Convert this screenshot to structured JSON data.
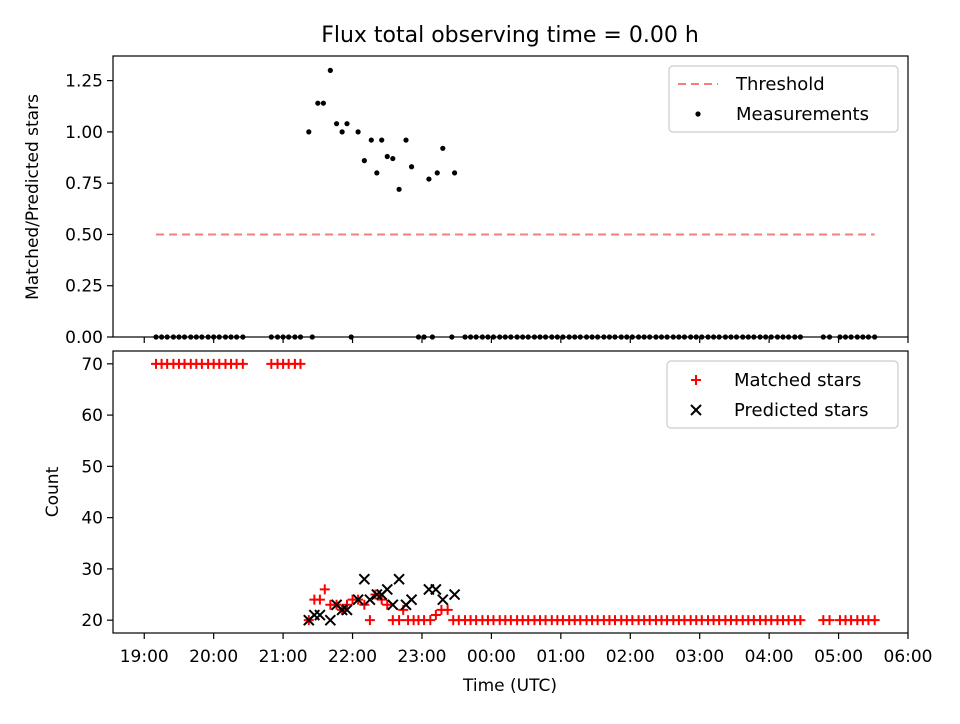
{
  "figure": {
    "title": "Flux total observing time = 0.00 h",
    "xlabel": "Time (UTC)",
    "x_tick_labels": [
      "19:00",
      "20:00",
      "21:00",
      "22:00",
      "23:00",
      "00:00",
      "01:00",
      "02:00",
      "03:00",
      "04:00",
      "05:00",
      "06:00"
    ]
  },
  "colors": {
    "threshold": "#f08080",
    "matched": "#ff0000",
    "predicted": "#000000",
    "measurement": "#000000"
  },
  "chart_data": [
    {
      "type": "scatter",
      "panel": "top",
      "title": "Flux total observing time = 0.00 h",
      "xlabel": "",
      "ylabel": "Matched/Predicted stars",
      "xlim_hours": [
        18.55,
        30.0
      ],
      "ylim": [
        0,
        1.37
      ],
      "y_ticks": [
        0.0,
        0.25,
        0.5,
        0.75,
        1.0,
        1.25
      ],
      "y_tick_labels": [
        "0.00",
        "0.25",
        "0.50",
        "0.75",
        "1.00",
        "1.25"
      ],
      "legend": {
        "position": "top-right",
        "entries": [
          "Threshold",
          "Measurements"
        ]
      },
      "threshold": {
        "name": "Threshold",
        "value": 0.5,
        "x_range_hours": [
          19.17,
          29.52
        ],
        "style": "dashed"
      },
      "series": [
        {
          "name": "Measurements",
          "x_hours": [
            21.37,
            21.5,
            21.58,
            21.68,
            21.77,
            21.85,
            21.92,
            22.08,
            22.17,
            22.27,
            22.35,
            22.42,
            22.5,
            22.58,
            22.67,
            22.77,
            22.85,
            23.1,
            23.22,
            23.3,
            23.47
          ],
          "y": [
            1.0,
            1.14,
            1.14,
            1.3,
            1.04,
            1.0,
            1.04,
            1.0,
            0.86,
            0.96,
            0.8,
            0.96,
            0.88,
            0.87,
            0.72,
            0.96,
            0.83,
            0.77,
            0.8,
            0.92,
            0.8
          ]
        },
        {
          "name": "Measurements",
          "x_hours": [
            19.17,
            19.25,
            19.33,
            19.42,
            19.5,
            19.58,
            19.67,
            19.75,
            19.83,
            19.92,
            20.0,
            20.08,
            20.17,
            20.25,
            20.33,
            20.42,
            20.83,
            20.92,
            21.0,
            21.08,
            21.17,
            21.25,
            21.42,
            21.98,
            22.95,
            23.03,
            23.15,
            23.43,
            23.62,
            23.7,
            23.78,
            23.87,
            23.95,
            24.03,
            24.12,
            24.2,
            24.28,
            24.37,
            24.45,
            24.53,
            24.62,
            24.7,
            24.78,
            24.87,
            24.95,
            25.03,
            25.12,
            25.2,
            25.28,
            25.37,
            25.45,
            25.53,
            25.62,
            25.7,
            25.78,
            25.87,
            25.95,
            26.03,
            26.12,
            26.2,
            26.28,
            26.37,
            26.45,
            26.53,
            26.62,
            26.7,
            26.78,
            26.87,
            26.95,
            27.03,
            27.12,
            27.2,
            27.28,
            27.37,
            27.45,
            27.53,
            27.62,
            27.7,
            27.78,
            27.87,
            27.95,
            28.03,
            28.12,
            28.2,
            28.28,
            28.37,
            28.45,
            28.78,
            28.87,
            29.02,
            29.1,
            29.18,
            29.27,
            29.35,
            29.43,
            29.52
          ],
          "y": [
            0,
            0,
            0,
            0,
            0,
            0,
            0,
            0,
            0,
            0,
            0,
            0,
            0,
            0,
            0,
            0,
            0,
            0,
            0,
            0,
            0,
            0,
            0,
            0,
            0,
            0,
            0,
            0,
            0,
            0,
            0,
            0,
            0,
            0,
            0,
            0,
            0,
            0,
            0,
            0,
            0,
            0,
            0,
            0,
            0,
            0,
            0,
            0,
            0,
            0,
            0,
            0,
            0,
            0,
            0,
            0,
            0,
            0,
            0,
            0,
            0,
            0,
            0,
            0,
            0,
            0,
            0,
            0,
            0,
            0,
            0,
            0,
            0,
            0,
            0,
            0,
            0,
            0,
            0,
            0,
            0,
            0,
            0,
            0,
            0,
            0,
            0,
            0,
            0,
            0,
            0,
            0,
            0,
            0,
            0,
            0
          ]
        }
      ]
    },
    {
      "type": "scatter",
      "panel": "bottom",
      "xlabel": "Time (UTC)",
      "ylabel": "Count",
      "xlim_hours": [
        18.55,
        30.0
      ],
      "ylim": [
        17.5,
        72.5
      ],
      "y_ticks": [
        20,
        30,
        40,
        50,
        60,
        70
      ],
      "y_tick_labels": [
        "20",
        "30",
        "40",
        "50",
        "60",
        "70"
      ],
      "legend": {
        "position": "top-right",
        "entries": [
          "Matched stars",
          "Predicted stars"
        ]
      },
      "series": [
        {
          "name": "Matched stars",
          "marker": "+",
          "x_hours": [
            19.17,
            19.25,
            19.33,
            19.42,
            19.5,
            19.58,
            19.67,
            19.75,
            19.83,
            19.92,
            20.0,
            20.08,
            20.17,
            20.25,
            20.33,
            20.42,
            20.83,
            20.92,
            21.0,
            21.08,
            21.17,
            21.25,
            21.37,
            21.45,
            21.53,
            21.6,
            21.68,
            21.77,
            21.85,
            21.92,
            22.0,
            22.08,
            22.17,
            22.25,
            22.33,
            22.42,
            22.5,
            22.58,
            22.67,
            22.73,
            22.8,
            22.88,
            22.95,
            23.03,
            23.12,
            23.2,
            23.28,
            23.37,
            23.45,
            23.53,
            23.62,
            23.7,
            23.78,
            23.87,
            23.95,
            24.03,
            24.12,
            24.2,
            24.28,
            24.37,
            24.45,
            24.53,
            24.62,
            24.7,
            24.78,
            24.87,
            24.95,
            25.03,
            25.12,
            25.2,
            25.28,
            25.37,
            25.45,
            25.53,
            25.62,
            25.7,
            25.78,
            25.87,
            25.95,
            26.03,
            26.12,
            26.2,
            26.28,
            26.37,
            26.45,
            26.53,
            26.62,
            26.7,
            26.78,
            26.87,
            26.95,
            27.03,
            27.12,
            27.2,
            27.28,
            27.37,
            27.45,
            27.53,
            27.62,
            27.7,
            27.78,
            27.87,
            27.95,
            28.03,
            28.12,
            28.2,
            28.28,
            28.37,
            28.45,
            28.78,
            28.87,
            29.02,
            29.1,
            29.18,
            29.27,
            29.35,
            29.43,
            29.52
          ],
          "y": [
            70,
            70,
            70,
            70,
            70,
            70,
            70,
            70,
            70,
            70,
            70,
            70,
            70,
            70,
            70,
            70,
            70,
            70,
            70,
            70,
            70,
            70,
            20,
            24,
            24,
            26,
            23,
            23,
            22,
            23,
            24,
            24,
            23,
            20,
            25,
            24,
            23,
            20,
            20,
            22,
            20,
            20,
            20,
            20,
            20,
            21,
            22,
            22,
            20,
            20,
            20,
            20,
            20,
            20,
            20,
            20,
            20,
            20,
            20,
            20,
            20,
            20,
            20,
            20,
            20,
            20,
            20,
            20,
            20,
            20,
            20,
            20,
            20,
            20,
            20,
            20,
            20,
            20,
            20,
            20,
            20,
            20,
            20,
            20,
            20,
            20,
            20,
            20,
            20,
            20,
            20,
            20,
            20,
            20,
            20,
            20,
            20,
            20,
            20,
            20,
            20,
            20,
            20,
            20,
            20,
            20,
            20,
            20,
            20,
            20,
            20,
            20,
            20,
            20,
            20,
            20,
            20,
            20
          ]
        },
        {
          "name": "Predicted stars",
          "marker": "x",
          "x_hours": [
            21.37,
            21.45,
            21.53,
            21.68,
            21.77,
            21.85,
            21.92,
            22.08,
            22.17,
            22.25,
            22.35,
            22.42,
            22.5,
            22.58,
            22.67,
            22.77,
            22.85,
            23.1,
            23.2,
            23.3,
            23.47
          ],
          "y": [
            20,
            21,
            21,
            20,
            23,
            22,
            22,
            24,
            28,
            24,
            25,
            25,
            26,
            23,
            28,
            23,
            24,
            26,
            26,
            24,
            25
          ]
        }
      ]
    }
  ]
}
